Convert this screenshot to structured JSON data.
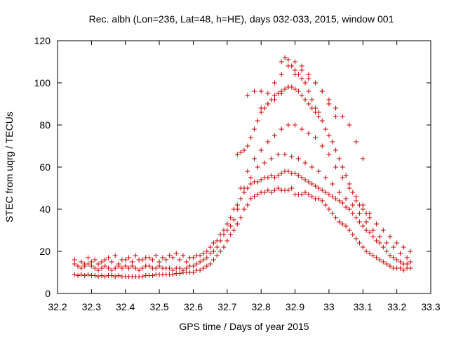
{
  "chart_data": {
    "type": "scatter",
    "title": "Rec. albh (Lon=236, Lat=48, h=HE), days 032-033, 2015, window 001",
    "xlabel": "GPS time / Days of year 2015",
    "ylabel": "STEC from uqrg / TECUs",
    "xlim": [
      32.2,
      33.3
    ],
    "ylim": [
      0,
      120
    ],
    "xticks": [
      32.2,
      32.3,
      32.4,
      32.5,
      32.6,
      32.7,
      32.8,
      32.9,
      33.0,
      33.1,
      33.2,
      33.3
    ],
    "xtick_labels": [
      "32.2",
      "32.3",
      "32.4",
      "32.5",
      "32.6",
      "32.7",
      "32.8",
      "32.9",
      "33",
      "33.1",
      "33.2",
      "33.3"
    ],
    "yticks": [
      0,
      20,
      40,
      60,
      80,
      100,
      120
    ],
    "ytick_labels": [
      "0",
      "20",
      "40",
      "60",
      "80",
      "100",
      "120"
    ],
    "grid": false,
    "marker": "+",
    "color": "#cc0000",
    "series": [
      {
        "x": [
          32.25,
          32.26,
          32.27,
          32.28,
          32.29,
          32.3,
          32.31,
          32.32,
          32.33,
          32.34,
          32.35,
          32.36,
          32.37,
          32.38,
          32.39,
          32.4,
          32.41,
          32.42,
          32.43,
          32.44,
          32.45,
          32.46,
          32.47,
          32.48,
          32.49,
          32.5,
          32.51,
          32.52,
          32.53,
          32.54,
          32.55,
          32.56,
          32.57,
          32.58,
          32.59,
          32.6,
          32.61,
          32.62,
          32.63,
          32.64,
          32.65,
          32.66,
          32.67,
          32.68,
          32.69,
          32.7,
          32.71,
          32.72,
          32.73,
          32.74,
          32.75,
          32.76,
          32.77,
          32.78,
          32.79,
          32.8,
          32.81,
          32.82,
          32.83,
          32.84,
          32.85,
          32.86,
          32.87,
          32.88,
          32.89,
          32.9,
          32.91,
          32.92,
          32.93,
          32.94,
          32.95,
          32.96,
          32.97,
          32.98,
          32.99,
          33.0,
          33.01,
          33.02,
          33.03,
          33.04,
          33.05,
          33.06,
          33.07,
          33.08,
          33.09,
          33.1,
          33.11,
          33.12,
          33.13,
          33.14,
          33.15,
          33.16,
          33.17,
          33.18,
          33.19,
          33.2,
          33.21,
          33.22,
          33.23,
          33.24,
          32.25,
          32.26,
          32.27,
          32.28,
          32.29,
          32.3,
          32.31,
          32.32,
          32.33,
          32.34,
          32.35,
          32.36,
          32.37,
          32.38,
          32.39,
          32.4,
          32.41,
          32.42,
          32.43,
          32.44,
          32.45,
          32.46,
          32.47,
          32.48,
          32.49,
          32.5,
          32.51,
          32.52,
          32.53,
          32.54,
          32.55,
          32.56,
          32.57,
          32.58,
          32.59,
          32.6,
          32.61,
          32.62,
          32.63,
          32.64,
          32.65,
          32.66,
          32.67,
          32.68,
          32.69,
          32.7,
          32.71,
          32.72,
          32.73,
          32.74,
          32.75,
          32.76,
          32.77,
          32.78,
          32.79,
          32.8,
          32.81,
          32.82,
          32.83,
          32.84,
          32.85,
          32.86,
          32.87,
          32.88,
          32.89,
          32.9,
          32.91,
          32.92,
          32.93,
          32.94,
          32.95,
          32.96,
          32.97,
          32.98,
          32.99,
          33.0,
          33.01,
          33.02,
          33.03,
          33.04,
          33.05,
          33.06,
          33.07,
          33.08,
          33.09,
          33.1,
          33.11,
          33.12,
          33.13,
          33.14,
          33.15,
          33.16,
          33.17,
          33.18,
          33.19,
          33.2,
          33.21,
          33.22,
          33.23,
          33.24,
          32.25,
          32.27,
          32.29,
          32.31,
          32.33,
          32.35,
          32.37,
          32.39,
          32.41,
          32.43,
          32.45,
          32.47,
          32.49,
          32.51,
          32.53,
          32.55,
          32.57,
          32.59,
          32.61,
          32.63,
          32.65,
          32.67,
          32.69,
          32.71,
          32.73,
          32.75,
          32.77,
          32.79,
          32.81,
          32.83,
          32.85,
          32.87,
          32.89,
          32.91,
          32.93,
          32.95,
          32.97,
          32.99,
          33.01,
          33.03,
          33.05,
          33.07,
          33.09,
          33.11,
          33.13,
          33.15,
          33.17,
          33.19,
          33.21,
          33.23,
          32.26,
          32.28,
          32.3,
          32.32,
          32.34,
          32.36,
          32.38,
          32.4,
          32.42,
          32.44,
          32.46,
          32.48,
          32.5,
          32.52,
          32.54,
          32.56,
          32.58,
          32.6,
          32.62,
          32.64,
          32.66,
          32.68,
          32.7,
          32.72,
          32.74,
          32.76,
          32.78,
          32.8,
          32.82,
          32.84,
          32.86,
          32.88,
          32.9,
          32.92,
          32.94,
          32.96,
          32.98,
          33.0,
          33.02,
          33.04,
          33.06,
          33.08,
          33.1,
          33.12,
          33.14,
          33.16,
          33.18,
          33.2,
          33.22,
          33.24,
          32.73,
          32.74,
          32.75,
          32.76,
          32.77,
          32.78,
          32.79,
          32.8,
          32.81,
          32.82,
          32.83,
          32.84,
          32.85,
          32.86,
          32.87,
          32.88,
          32.89,
          32.9,
          32.91,
          32.92,
          32.93,
          32.94,
          32.95,
          32.96,
          32.97,
          32.98,
          32.99,
          33.0,
          33.01,
          33.02,
          33.03,
          33.04,
          33.05,
          33.06,
          33.07,
          33.08,
          33.09,
          33.1,
          33.11,
          33.12,
          32.76,
          32.78,
          32.8,
          32.82,
          32.84,
          32.86,
          32.88,
          32.9,
          32.92,
          32.94,
          32.96,
          32.98,
          33.0,
          33.02,
          33.04,
          33.06,
          33.08,
          33.1,
          32.8,
          32.82,
          32.84,
          32.86,
          32.88,
          32.9,
          32.92,
          32.94,
          32.96,
          32.98,
          33.0,
          33.02,
          32.86,
          32.87,
          32.88,
          32.89,
          32.9,
          32.91,
          32.92,
          32.93,
          32.94,
          32.95,
          32.96,
          32.97
        ],
        "y": [
          9,
          8.5,
          9,
          8.5,
          9,
          8.5,
          8.5,
          8,
          8.5,
          8,
          8.5,
          8.5,
          8,
          8.5,
          8,
          8,
          8,
          8,
          8,
          8,
          8,
          8.5,
          8.5,
          8.5,
          9,
          9,
          9,
          9,
          9,
          9,
          9.5,
          9.5,
          10,
          10,
          10,
          10,
          11,
          11,
          12,
          13,
          14,
          16,
          18,
          20,
          22,
          25,
          28,
          30,
          33,
          36,
          40,
          42,
          45,
          46,
          47,
          48,
          48,
          49,
          48,
          49,
          50,
          49,
          49,
          49,
          50,
          47,
          47,
          47,
          48,
          47,
          46,
          45,
          45,
          44,
          42,
          40,
          38,
          36,
          34,
          33,
          32,
          30,
          28,
          26,
          24,
          22,
          20,
          19,
          18,
          17,
          16,
          15,
          14,
          13,
          12,
          12,
          12,
          11,
          12,
          12,
          14,
          13,
          12,
          13,
          14,
          13,
          12,
          11,
          12,
          13,
          12,
          11,
          12,
          13,
          12,
          13,
          12,
          13,
          12,
          11,
          12,
          13,
          13,
          12,
          12,
          13,
          12,
          12,
          12,
          11,
          12,
          12,
          11,
          12,
          13,
          13,
          14,
          15,
          16,
          17,
          19,
          20,
          22,
          25,
          28,
          30,
          32,
          35,
          40,
          45,
          48,
          50,
          52,
          53,
          53,
          54,
          55,
          55,
          56,
          55,
          56,
          57,
          58,
          58,
          57,
          57,
          56,
          55,
          54,
          53,
          52,
          51,
          50,
          49,
          48,
          47,
          46,
          45,
          44,
          43,
          41,
          40,
          38,
          36,
          34,
          32,
          30,
          29,
          27,
          25,
          24,
          22,
          20,
          18,
          17,
          16,
          15,
          14,
          14,
          15,
          16,
          15,
          17,
          16,
          15,
          17,
          18,
          16,
          17,
          18,
          16,
          17,
          18,
          17,
          18,
          19,
          18,
          17,
          18,
          19,
          22,
          25,
          30,
          36,
          42,
          50,
          55,
          60,
          62,
          64,
          66,
          66,
          65,
          64,
          62,
          60,
          58,
          55,
          52,
          48,
          45,
          42,
          38,
          34,
          30,
          27,
          24,
          22,
          19,
          17,
          13,
          14,
          15,
          14,
          16,
          15,
          14,
          16,
          15,
          16,
          17,
          16,
          15,
          16,
          17,
          16,
          15,
          17,
          18,
          20,
          24,
          28,
          33,
          40,
          50,
          58,
          64,
          68,
          72,
          75,
          78,
          80,
          80,
          78,
          76,
          74,
          70,
          66,
          60,
          55,
          50,
          46,
          42,
          38,
          33,
          30,
          27,
          24,
          22,
          20,
          66,
          67,
          68,
          70,
          74,
          78,
          82,
          86,
          88,
          90,
          92,
          94,
          95,
          96,
          97,
          98,
          98,
          97,
          96,
          94,
          92,
          90,
          88,
          86,
          84,
          82,
          78,
          75,
          72,
          68,
          64,
          60,
          56,
          52,
          48,
          44,
          42,
          40,
          38,
          36,
          94,
          96,
          96,
          95,
          100,
          104,
          108,
          110,
          108,
          104,
          100,
          96,
          92,
          88,
          84,
          80,
          72,
          64,
          88,
          90,
          92,
          95,
          98,
          104,
          106,
          102,
          100,
          96,
          90,
          84,
          110,
          112,
          111,
          108,
          106,
          104,
          102,
          100,
          96,
          92,
          88,
          86
        ]
      }
    ]
  }
}
